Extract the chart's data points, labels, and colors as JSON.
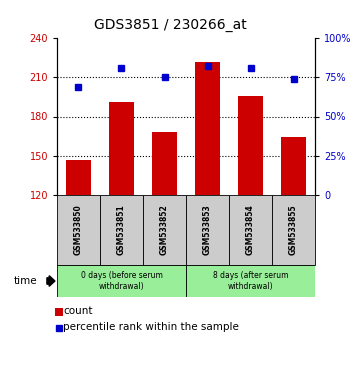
{
  "title": "GDS3851 / 230266_at",
  "samples": [
    "GSM533850",
    "GSM533851",
    "GSM533852",
    "GSM533853",
    "GSM533854",
    "GSM533855"
  ],
  "counts": [
    147,
    191,
    168,
    222,
    196,
    164
  ],
  "percentiles": [
    69,
    81,
    75,
    82,
    81,
    74
  ],
  "ylim_left": [
    120,
    240
  ],
  "ylim_right": [
    0,
    100
  ],
  "yticks_left": [
    120,
    150,
    180,
    210,
    240
  ],
  "yticks_right": [
    0,
    25,
    50,
    75,
    100
  ],
  "bar_color": "#cc0000",
  "dot_color": "#0000cc",
  "group1_label": "0 days (before serum\nwithdrawal)",
  "group2_label": "8 days (after serum\nwithdrawal)",
  "group_bg_color": "#99ee99",
  "sample_bg_color": "#cccccc",
  "legend_count_label": "count",
  "legend_pct_label": "percentile rank within the sample"
}
